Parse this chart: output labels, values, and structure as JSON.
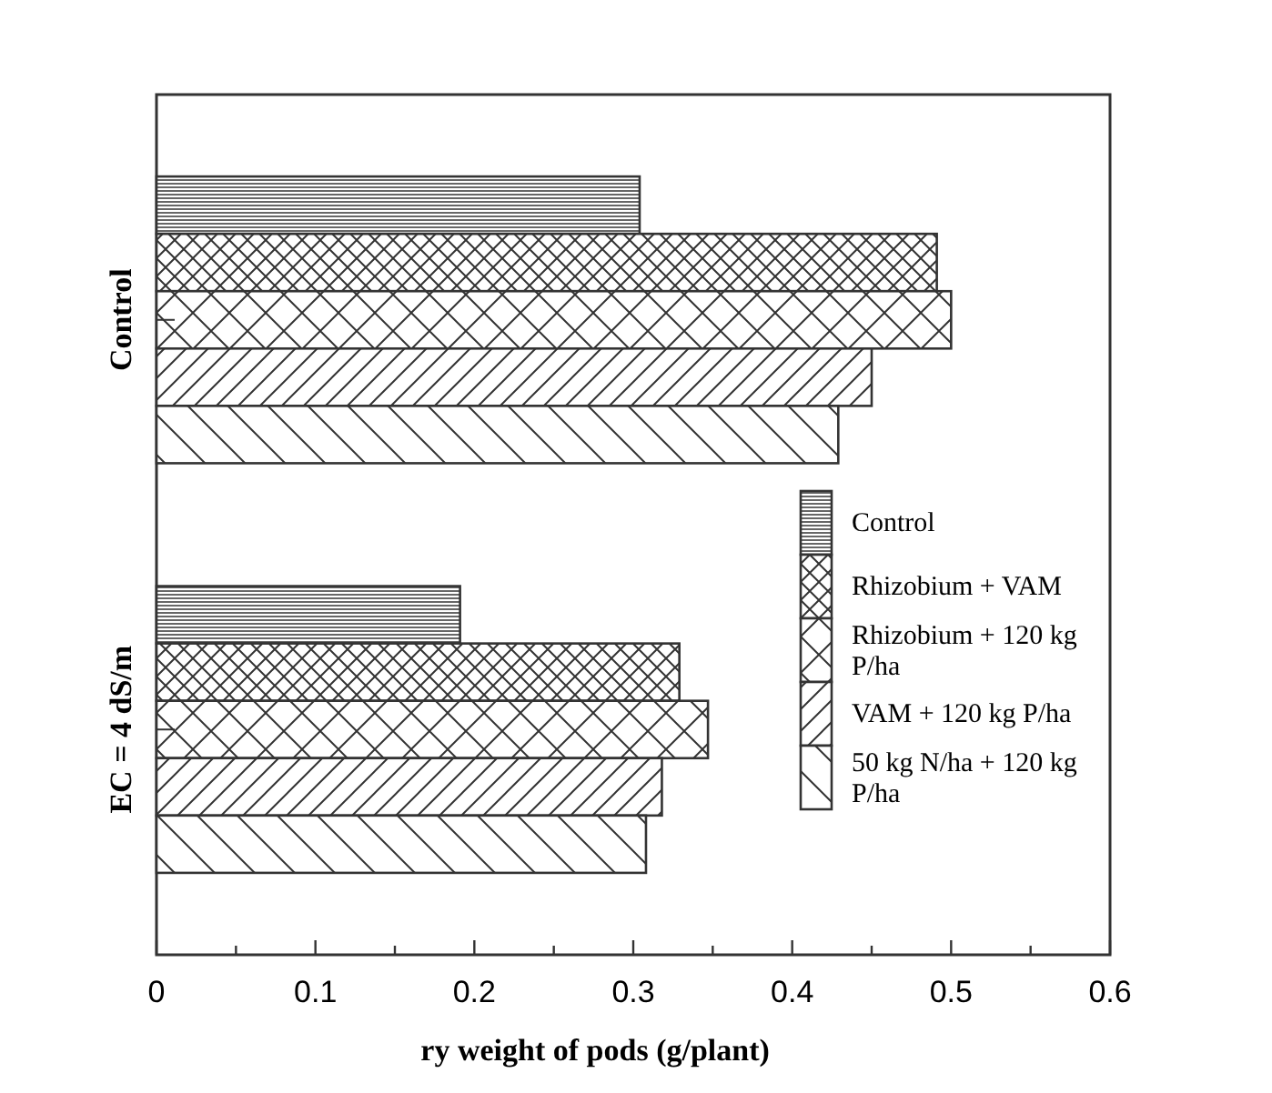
{
  "chart_data": {
    "type": "bar",
    "orientation": "horizontal",
    "xlabel": "ry weight of pods (g/plant)",
    "categories": [
      "Control",
      "EC = 4 dS/m"
    ],
    "series": [
      {
        "name": "Control",
        "color": "#333333",
        "values": [
          0.304,
          0.191
        ]
      },
      {
        "name": "Rhizobium + VAM",
        "color": "#333333",
        "values": [
          0.491,
          0.329
        ]
      },
      {
        "name": "Rhizobium + 120 kg P/ha",
        "color": "#333333",
        "values": [
          0.5,
          0.347
        ]
      },
      {
        "name": "VAM + 120 kg P/ha",
        "color": "#333333",
        "values": [
          0.45,
          0.318
        ]
      },
      {
        "name": "50 kg N/ha + 120 kg P/ha",
        "color": "#333333",
        "values": [
          0.429,
          0.308
        ]
      }
    ],
    "xlim": [
      0,
      0.6
    ],
    "xticks": [
      0,
      {
        "value": 0.05,
        "label": null
      },
      0.1,
      {
        "value": 0.15,
        "label": null
      },
      0.2,
      {
        "value": 0.25,
        "label": null
      },
      0.3,
      {
        "value": 0.35,
        "label": null
      },
      0.4,
      {
        "value": 0.45,
        "label": null
      },
      0.5,
      {
        "value": 0.55,
        "label": null
      },
      0.6
    ],
    "grid": false,
    "legend": "bottom right"
  }
}
